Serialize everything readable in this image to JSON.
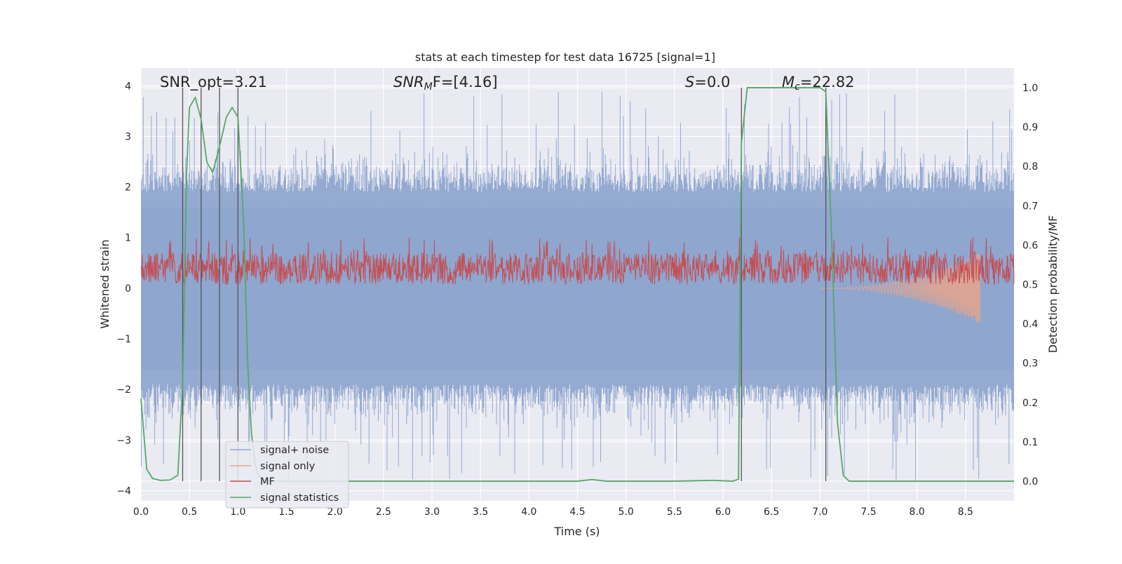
{
  "chart_data": {
    "type": "line",
    "title": "stats at each timestep for test data 16725 [signal=1]",
    "xlabel": "Time (s)",
    "ylabel_left": "Whitened strain",
    "ylabel_right": "Detection probability/MF",
    "xlim": [
      0.0,
      9.0
    ],
    "ylim_left": [
      -4.2,
      4.35
    ],
    "ylim_right": [
      -0.05,
      1.05
    ],
    "x_ticks": [
      "0.0",
      "0.5",
      "1.0",
      "1.5",
      "2.0",
      "2.5",
      "3.0",
      "3.5",
      "4.0",
      "4.5",
      "5.0",
      "5.5",
      "6.0",
      "6.5",
      "7.0",
      "7.5",
      "8.0",
      "8.5"
    ],
    "y_ticks_left": [
      "4",
      "3",
      "2",
      "1",
      "0",
      "−1",
      "−2",
      "−3",
      "−4"
    ],
    "y_ticks_right": [
      "1.0",
      "0.9",
      "0.8",
      "0.7",
      "0.6",
      "0.5",
      "0.4",
      "0.3",
      "0.2",
      "0.1",
      "0.0"
    ],
    "grid": true,
    "legend_position": "lower-left",
    "annotations": {
      "snr_opt": "SNR_opt=3.21",
      "snr_mf_main": "SNR",
      "snr_mf_sub": "M",
      "snr_mf_rest": "F=[4.16]",
      "s_italic": "S",
      "s_rest": "=0.0",
      "mc_main": "M",
      "mc_sub": "c",
      "mc_rest": "=22.82"
    },
    "series": [
      {
        "name": "signal+ noise",
        "color": "#8fa6cf",
        "axis": "left",
        "style": "dense noise, envelope approx -2.5 to 2.5 with spikes to about ±4"
      },
      {
        "name": "signal only",
        "color": "#e8a48a",
        "axis": "left",
        "chirp": {
          "start": 7.0,
          "end": 8.65,
          "peak_amplitude": 0.7
        }
      },
      {
        "name": "MF",
        "color": "#c44e52",
        "axis": "right",
        "band": [
          0.5,
          0.58
        ]
      },
      {
        "name": "signal statistics",
        "color": "#55a868",
        "axis": "right",
        "x": [
          0.0,
          0.06,
          0.12,
          0.2,
          0.3,
          0.38,
          0.43,
          0.47,
          0.5,
          0.56,
          0.62,
          0.68,
          0.74,
          0.8,
          0.88,
          0.94,
          1.0,
          1.06,
          1.1,
          1.14,
          1.18,
          1.22,
          1.3,
          4.5,
          4.65,
          4.8,
          5.5,
          5.9,
          6.1,
          6.16,
          6.19,
          6.25,
          6.5,
          7.0,
          7.06,
          7.12,
          7.18,
          7.24,
          7.3,
          9.0
        ],
        "y": [
          0.21,
          0.03,
          0.007,
          0.002,
          0.003,
          0.015,
          0.25,
          0.78,
          0.95,
          0.975,
          0.92,
          0.81,
          0.785,
          0.84,
          0.925,
          0.95,
          0.925,
          0.65,
          0.3,
          0.12,
          0.04,
          0.01,
          0.0,
          0.0,
          0.004,
          0.0,
          0.0,
          0.002,
          0.0,
          0.005,
          0.86,
          1.0,
          1.0,
          1.0,
          0.99,
          0.62,
          0.15,
          0.015,
          0.0,
          0.0
        ]
      }
    ],
    "vertical_markers": [
      0.43,
      0.62,
      0.81,
      1.0,
      6.19,
      7.06
    ]
  }
}
